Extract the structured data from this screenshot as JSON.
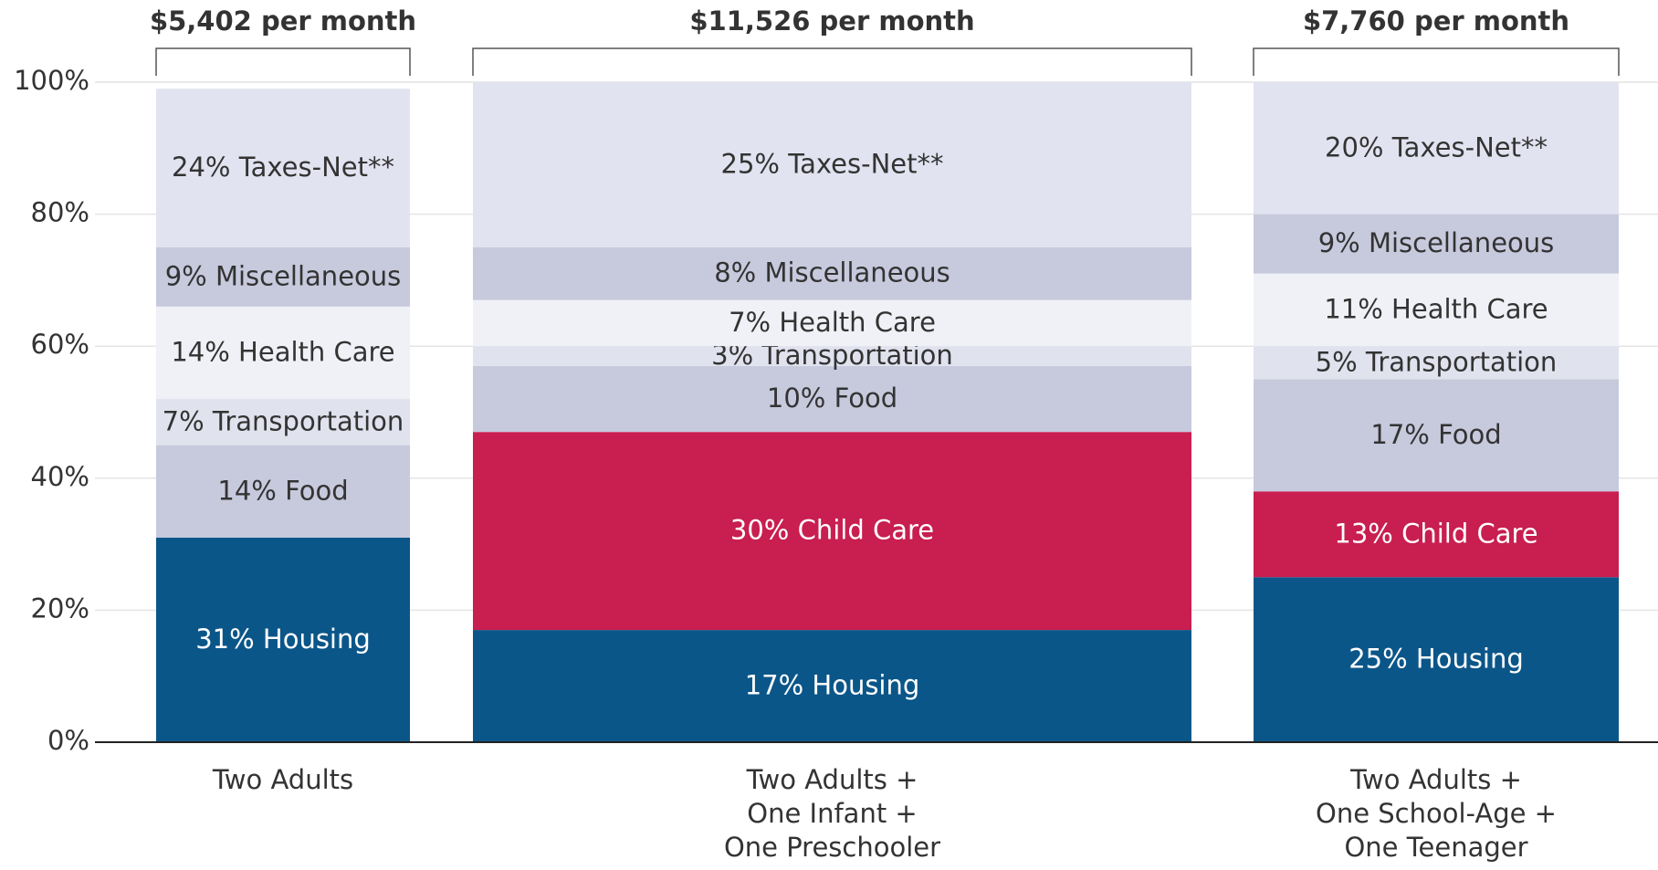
{
  "chart_data": {
    "type": "stacked-bar",
    "categories": [
      [
        "Two Adults"
      ],
      [
        "Two Adults +",
        "One Infant +",
        "One Preschooler"
      ],
      [
        "Two Adults +",
        "One School-Age +",
        "One Teenager"
      ]
    ],
    "totals": [
      "$5,402 per month",
      "$11,526 per month",
      "$7,760 per month"
    ],
    "series": [
      {
        "name": "Housing",
        "color": "#0b5689",
        "values": [
          31,
          17,
          25
        ],
        "value_labels": [
          "31%",
          "17%",
          "25%"
        ]
      },
      {
        "name": "Child Care",
        "color": "#c81e50",
        "values": [
          null,
          30,
          13
        ],
        "value_labels": [
          null,
          "30%",
          "13%"
        ]
      },
      {
        "name": "Food",
        "color": "#c7c9dd",
        "values": [
          14,
          10,
          17
        ],
        "value_labels": [
          "14%",
          "10%",
          "17%"
        ]
      },
      {
        "name": "Transportation",
        "color": "#e0e2ee",
        "values": [
          7,
          3,
          5
        ],
        "value_labels": [
          "7%",
          "3%",
          "5%"
        ]
      },
      {
        "name": "Health Care",
        "color": "#f0f1f6",
        "values": [
          14,
          7,
          11
        ],
        "value_labels": [
          "14%",
          "7%",
          "11%"
        ]
      },
      {
        "name": "Miscellaneous",
        "color": "#c7c9dd",
        "values": [
          9,
          8,
          9
        ],
        "value_labels": [
          "9%",
          "8%",
          "9%"
        ]
      },
      {
        "name": "Taxes-Net**",
        "color": "#e2e3f0",
        "values": [
          24,
          25,
          20
        ],
        "value_labels": [
          "24%",
          "25%",
          "20%"
        ]
      }
    ],
    "ylim": [
      0,
      100
    ],
    "yticks": [
      {
        "value": 0,
        "label": "0%"
      },
      {
        "value": 20,
        "label": "20%"
      },
      {
        "value": 40,
        "label": "40%"
      },
      {
        "value": 60,
        "label": "60%"
      },
      {
        "value": 80,
        "label": "80%"
      },
      {
        "value": 100,
        "label": "100%"
      }
    ],
    "grid": true
  }
}
